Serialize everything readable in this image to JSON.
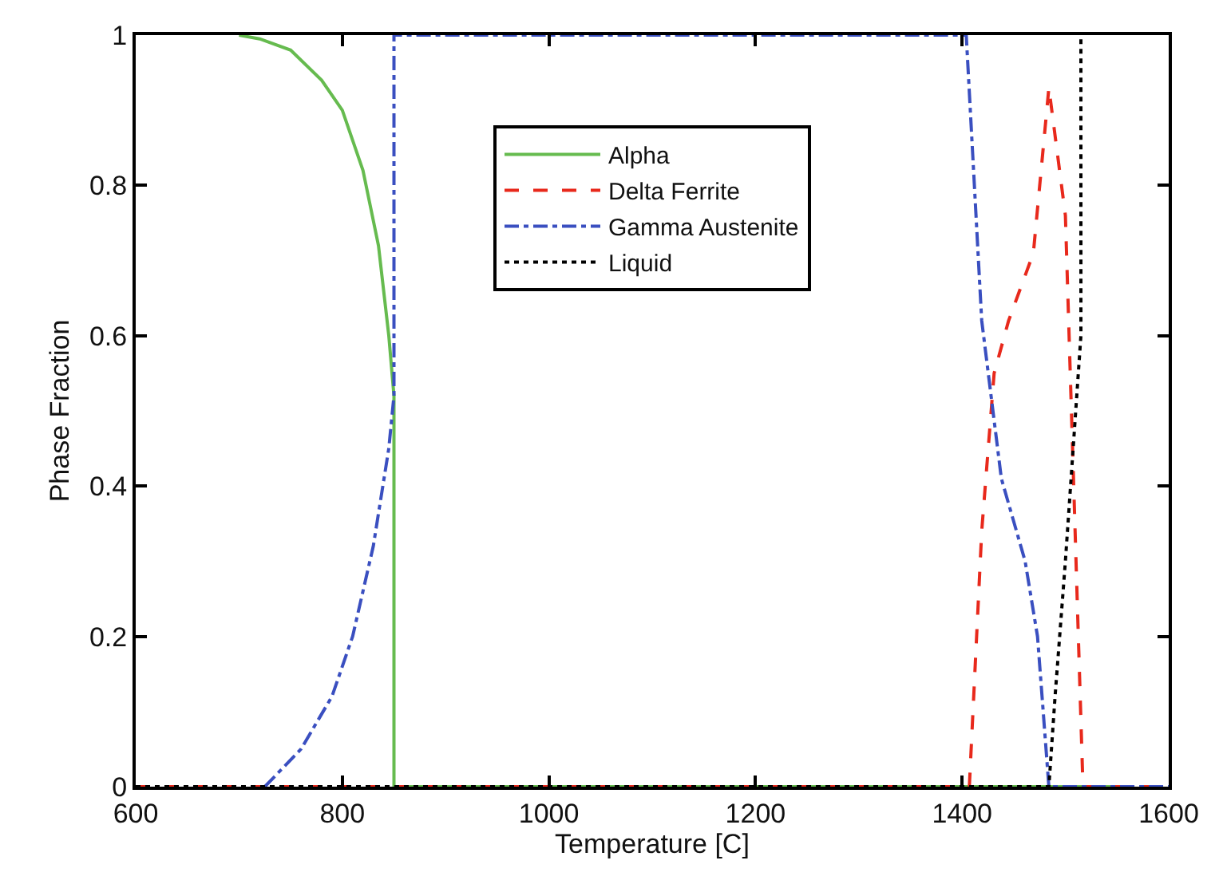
{
  "chart_data": {
    "type": "line",
    "xlabel": "Temperature [C]",
    "ylabel": "Phase Fraction",
    "xlim": [
      600,
      1600
    ],
    "xticks": [
      600,
      800,
      1000,
      1200,
      1400,
      1600
    ],
    "ylim": [
      0,
      1
    ],
    "yticks": [
      0,
      0.2,
      0.4,
      0.6,
      0.8,
      1
    ],
    "grid": false,
    "legend": "top",
    "marker": "none",
    "series": [
      {
        "name": "Alpha",
        "color": "#66bb4f",
        "line_style": "solid",
        "x": [
          700,
          720,
          750,
          780,
          800,
          820,
          835,
          845,
          850,
          850,
          1550
        ],
        "values": [
          1,
          0.995,
          0.98,
          0.94,
          0.9,
          0.82,
          0.72,
          0.6,
          0.52,
          0,
          0
        ]
      },
      {
        "name": "Delta Ferrite",
        "color": "#e8291c",
        "line_style": "dashed",
        "x": [
          600,
          1407,
          1419,
          1431,
          1445,
          1469,
          1484,
          1500,
          1517,
          1600
        ],
        "values": [
          0,
          0,
          0.34,
          0.55,
          0.62,
          0.71,
          0.93,
          0.76,
          0,
          0
        ]
      },
      {
        "name": "Gamma Austenite",
        "color": "#3a4fc0",
        "line_style": "dashdot",
        "x": [
          725,
          760,
          790,
          810,
          830,
          845,
          850,
          850,
          1404,
          1419,
          1438,
          1461,
          1473,
          1484,
          1600
        ],
        "values": [
          0,
          0.05,
          0.12,
          0.2,
          0.32,
          0.45,
          0.52,
          1,
          1,
          0.62,
          0.41,
          0.3,
          0.2,
          0,
          0
        ]
      },
      {
        "name": "Liquid",
        "color": "#000000",
        "line_style": "dotted",
        "x": [
          600,
          1484,
          1490,
          1500,
          1510,
          1515,
          1515
        ],
        "values": [
          0,
          0,
          0.12,
          0.3,
          0.5,
          0.6,
          1
        ]
      }
    ]
  }
}
